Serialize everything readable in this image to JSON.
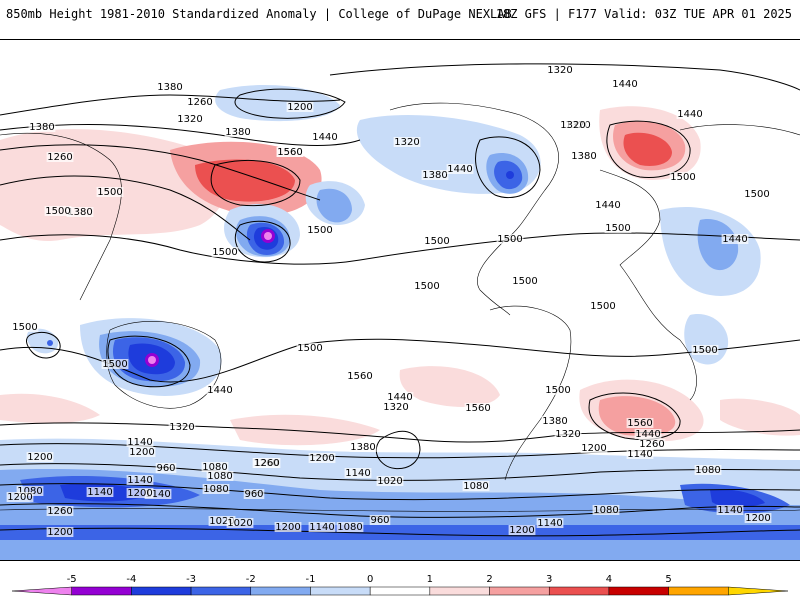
{
  "header": {
    "left_title": "850mb Height 1981-2010 Standardized Anomaly | College of DuPage NEXLAB",
    "right_title": "18Z GFS | F177 Valid: 03Z TUE APR 01 2025"
  },
  "map": {
    "product": "850mb height standardized anomaly",
    "contour_labels": [
      {
        "id": "c1",
        "text": "1320"
      },
      {
        "id": "c2",
        "text": "1380"
      },
      {
        "id": "c3",
        "text": "1260"
      },
      {
        "id": "c4",
        "text": "1200"
      },
      {
        "id": "c5",
        "text": "1260"
      },
      {
        "id": "c6",
        "text": "1320"
      },
      {
        "id": "c7",
        "text": "1380"
      },
      {
        "id": "c8",
        "text": "1380"
      },
      {
        "id": "c9",
        "text": "1440"
      },
      {
        "id": "c10",
        "text": "1440"
      },
      {
        "id": "c11",
        "text": "1500"
      },
      {
        "id": "c12",
        "text": "1560"
      },
      {
        "id": "c13",
        "text": "1560"
      },
      {
        "id": "c14",
        "text": "1380"
      },
      {
        "id": "c15",
        "text": "1500"
      },
      {
        "id": "c16",
        "text": "1500"
      },
      {
        "id": "c17",
        "text": "1320"
      },
      {
        "id": "c18",
        "text": "1380"
      },
      {
        "id": "c19",
        "text": "1440"
      },
      {
        "id": "c20",
        "text": "1320"
      },
      {
        "id": "c21",
        "text": "1320"
      },
      {
        "id": "c22",
        "text": "1380"
      },
      {
        "id": "c23",
        "text": "1440"
      },
      {
        "id": "c24",
        "text": "1500"
      },
      {
        "id": "c25",
        "text": "1440"
      },
      {
        "id": "c26",
        "text": "1500"
      },
      {
        "id": "c27",
        "text": "1500"
      },
      {
        "id": "c28",
        "text": "1500"
      },
      {
        "id": "c29",
        "text": "1440"
      },
      {
        "id": "c30",
        "text": "1500"
      },
      {
        "id": "c31",
        "text": "1500"
      },
      {
        "id": "c32",
        "text": "1500"
      },
      {
        "id": "c33",
        "text": "1500"
      },
      {
        "id": "c34",
        "text": "1500"
      },
      {
        "id": "c35",
        "text": "1500"
      },
      {
        "id": "c36",
        "text": "1500"
      },
      {
        "id": "c37",
        "text": "1500"
      },
      {
        "id": "c38",
        "text": "1500"
      },
      {
        "id": "c39",
        "text": "1440"
      },
      {
        "id": "c40",
        "text": "1560"
      },
      {
        "id": "c41",
        "text": "1440"
      },
      {
        "id": "c42",
        "text": "1320"
      },
      {
        "id": "c43",
        "text": "1560"
      },
      {
        "id": "c44",
        "text": "1500"
      },
      {
        "id": "c45",
        "text": "1380"
      },
      {
        "id": "c46",
        "text": "1380"
      },
      {
        "id": "c47",
        "text": "1320"
      },
      {
        "id": "c48",
        "text": "1320"
      },
      {
        "id": "c49",
        "text": "1260"
      },
      {
        "id": "c50",
        "text": "1200"
      },
      {
        "id": "c51",
        "text": "1140"
      },
      {
        "id": "c52",
        "text": "1560"
      },
      {
        "id": "c53",
        "text": "1440"
      },
      {
        "id": "c54",
        "text": "1260"
      },
      {
        "id": "c55",
        "text": "1140"
      },
      {
        "id": "c56",
        "text": "1200"
      },
      {
        "id": "c57",
        "text": "1140"
      },
      {
        "id": "c58",
        "text": "1200"
      },
      {
        "id": "c59",
        "text": "1260"
      },
      {
        "id": "c60",
        "text": "1200"
      },
      {
        "id": "c61",
        "text": "1140"
      },
      {
        "id": "c62",
        "text": "1020"
      },
      {
        "id": "c63",
        "text": "960"
      },
      {
        "id": "c64",
        "text": "1080"
      },
      {
        "id": "c65",
        "text": "1140"
      },
      {
        "id": "c66",
        "text": "1080"
      },
      {
        "id": "c67",
        "text": "1200"
      },
      {
        "id": "c68",
        "text": "1080"
      },
      {
        "id": "c69",
        "text": "960"
      },
      {
        "id": "c70",
        "text": "1020"
      },
      {
        "id": "c71",
        "text": "1080"
      },
      {
        "id": "c72",
        "text": "1080"
      },
      {
        "id": "c73",
        "text": "1140"
      },
      {
        "id": "c74",
        "text": "1200"
      },
      {
        "id": "c75",
        "text": "1260"
      },
      {
        "id": "c76",
        "text": "1200"
      },
      {
        "id": "c77",
        "text": "1020"
      },
      {
        "id": "c78",
        "text": "1200"
      },
      {
        "id": "c79",
        "text": "1140"
      },
      {
        "id": "c80",
        "text": "1080"
      },
      {
        "id": "c81",
        "text": "960"
      },
      {
        "id": "c82",
        "text": "1200"
      },
      {
        "id": "c83",
        "text": "1080"
      },
      {
        "id": "c84",
        "text": "1140"
      },
      {
        "id": "c85",
        "text": "1200"
      },
      {
        "id": "c86",
        "text": "1140"
      },
      {
        "id": "c87",
        "text": "1080"
      }
    ]
  },
  "colorbar": {
    "ticks": [
      "-5",
      "-4",
      "-3",
      "-2",
      "-1",
      "0",
      "1",
      "2",
      "3",
      "4",
      "5"
    ],
    "colors": [
      "#ee82ee",
      "#9400d3",
      "#1e3cdc",
      "#3c64e6",
      "#82aaf0",
      "#c8dcf8",
      "#ffffff",
      "#fadcdc",
      "#f5a0a0",
      "#eb5050",
      "#c80000",
      "#ffa500",
      "#ffd700"
    ]
  }
}
